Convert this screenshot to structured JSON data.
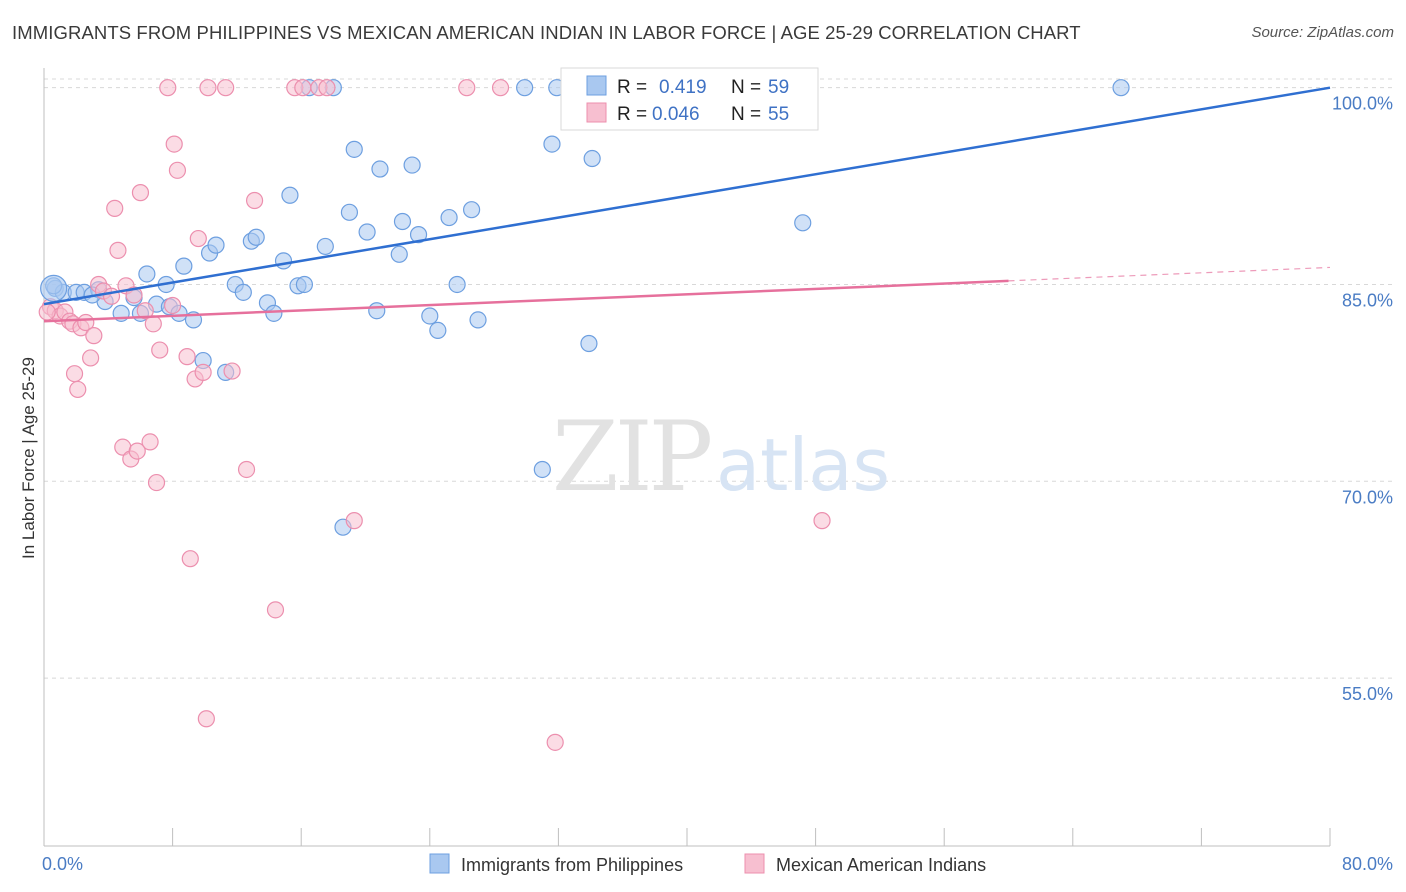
{
  "title": "IMMIGRANTS FROM PHILIPPINES VS MEXICAN AMERICAN INDIAN IN LABOR FORCE | AGE 25-29 CORRELATION CHART",
  "source": "Source: ZipAtlas.com",
  "watermark": {
    "zip": "ZIP",
    "atlas": "atlas"
  },
  "colors": {
    "blue_fill": "#a9c8f0",
    "blue_stroke": "#6d9fe0",
    "blue_line": "#2f6fd1",
    "pink_fill": "#f7bfd0",
    "pink_stroke": "#ec8fae",
    "pink_line": "#e6709c",
    "grid": "#d8d8d8",
    "tick_text": "#4a7cc4"
  },
  "stats_box": {
    "rows": [
      {
        "r_label": "R =",
        "r_value": "0.419",
        "n_label": "N =",
        "n_value": "59",
        "series": "blue"
      },
      {
        "r_label": "R =",
        "r_value": "0.046",
        "n_label": "N =",
        "n_value": "55",
        "series": "pink"
      }
    ]
  },
  "chart_data": {
    "type": "scatter",
    "title": "IMMIGRANTS FROM PHILIPPINES VS MEXICAN AMERICAN INDIAN IN LABOR FORCE | AGE 25-29 CORRELATION CHART",
    "xlabel": "",
    "ylabel": "In Labor Force | Age 25-29",
    "xlim": [
      0,
      80
    ],
    "ylim": [
      42.2,
      101.5
    ],
    "x_tick_labels": [
      {
        "value": 0,
        "label": "0.0%"
      },
      {
        "value": 80,
        "label": "80.0%"
      }
    ],
    "y_ticks": [
      {
        "value": 100,
        "label": "100.0%"
      },
      {
        "value": 85,
        "label": "85.0%"
      },
      {
        "value": 70,
        "label": "70.0%"
      },
      {
        "value": 55,
        "label": "55.0%"
      }
    ],
    "grid": true,
    "legend_position": "bottom",
    "series": [
      {
        "name": "Immigrants from Philippines",
        "color": "blue",
        "r": 0.419,
        "n": 59,
        "trend": {
          "x": [
            0,
            80
          ],
          "y": [
            83.5,
            100.0
          ],
          "dashed_from": null
        },
        "points": [
          [
            0.7,
            84.7
          ],
          [
            1.2,
            84.4
          ],
          [
            2.0,
            84.4
          ],
          [
            2.5,
            84.4
          ],
          [
            3.4,
            84.6
          ],
          [
            3.8,
            83.7
          ],
          [
            4.8,
            82.8
          ],
          [
            5.6,
            84.0
          ],
          [
            6.0,
            82.8
          ],
          [
            6.4,
            85.8
          ],
          [
            7.0,
            83.5
          ],
          [
            7.6,
            85.0
          ],
          [
            7.8,
            83.3
          ],
          [
            8.4,
            82.8
          ],
          [
            8.7,
            86.4
          ],
          [
            9.3,
            82.3
          ],
          [
            9.9,
            79.2
          ],
          [
            10.3,
            87.4
          ],
          [
            10.7,
            88.0
          ],
          [
            11.3,
            78.3
          ],
          [
            11.9,
            85.0
          ],
          [
            12.4,
            84.4
          ],
          [
            12.9,
            88.3
          ],
          [
            13.2,
            88.6
          ],
          [
            13.9,
            83.6
          ],
          [
            14.3,
            82.8
          ],
          [
            14.9,
            86.8
          ],
          [
            15.3,
            91.8
          ],
          [
            15.8,
            84.9
          ],
          [
            16.2,
            85.0
          ],
          [
            17.5,
            87.9
          ],
          [
            18.0,
            100.0
          ],
          [
            18.6,
            66.5
          ],
          [
            19.0,
            90.5
          ],
          [
            19.3,
            95.3
          ],
          [
            20.1,
            89.0
          ],
          [
            20.7,
            83.0
          ],
          [
            20.9,
            93.8
          ],
          [
            22.1,
            87.3
          ],
          [
            22.3,
            89.8
          ],
          [
            22.9,
            94.1
          ],
          [
            23.3,
            88.8
          ],
          [
            24.0,
            82.6
          ],
          [
            24.5,
            81.5
          ],
          [
            25.2,
            90.1
          ],
          [
            25.7,
            85.0
          ],
          [
            26.6,
            90.7
          ],
          [
            27.0,
            82.3
          ],
          [
            29.9,
            100.0
          ],
          [
            31.0,
            70.9
          ],
          [
            31.6,
            95.7
          ],
          [
            31.9,
            100.0
          ],
          [
            33.9,
            80.5
          ],
          [
            34.1,
            94.6
          ],
          [
            47.2,
            89.7
          ],
          [
            67.0,
            100.0
          ],
          [
            0.6,
            84.9
          ],
          [
            3.0,
            84.2
          ],
          [
            16.5,
            100.0
          ]
        ]
      },
      {
        "name": "Mexican American Indians",
        "color": "pink",
        "r": 0.046,
        "n": 55,
        "trend": {
          "x": [
            0,
            80
          ],
          "y": [
            82.2,
            86.3
          ],
          "dashed_from": 60
        },
        "points": [
          [
            0.4,
            83.3
          ],
          [
            0.7,
            83.0
          ],
          [
            1.0,
            82.6
          ],
          [
            1.3,
            82.9
          ],
          [
            1.6,
            82.2
          ],
          [
            1.8,
            82.0
          ],
          [
            1.9,
            78.2
          ],
          [
            2.1,
            77.0
          ],
          [
            2.3,
            81.7
          ],
          [
            2.6,
            82.1
          ],
          [
            2.9,
            79.4
          ],
          [
            3.1,
            81.1
          ],
          [
            3.4,
            85.0
          ],
          [
            3.7,
            84.5
          ],
          [
            4.2,
            84.1
          ],
          [
            4.4,
            90.8
          ],
          [
            4.6,
            87.6
          ],
          [
            4.9,
            72.6
          ],
          [
            5.1,
            84.9
          ],
          [
            5.4,
            71.7
          ],
          [
            5.6,
            84.2
          ],
          [
            5.8,
            72.3
          ],
          [
            6.0,
            92.0
          ],
          [
            6.3,
            83.0
          ],
          [
            6.6,
            73.0
          ],
          [
            6.8,
            82.0
          ],
          [
            7.0,
            69.9
          ],
          [
            7.2,
            80.0
          ],
          [
            7.7,
            100.0
          ],
          [
            8.0,
            83.4
          ],
          [
            8.1,
            95.7
          ],
          [
            8.3,
            93.7
          ],
          [
            8.9,
            79.5
          ],
          [
            9.1,
            64.1
          ],
          [
            9.4,
            77.8
          ],
          [
            9.6,
            88.5
          ],
          [
            9.9,
            78.3
          ],
          [
            10.1,
            51.9
          ],
          [
            10.2,
            100.0
          ],
          [
            11.3,
            100.0
          ],
          [
            11.7,
            78.4
          ],
          [
            12.6,
            70.9
          ],
          [
            13.1,
            91.4
          ],
          [
            14.4,
            60.2
          ],
          [
            15.6,
            100.0
          ],
          [
            16.1,
            100.0
          ],
          [
            17.1,
            100.0
          ],
          [
            17.6,
            100.0
          ],
          [
            19.3,
            67.0
          ],
          [
            26.3,
            100.0
          ],
          [
            28.4,
            100.0
          ],
          [
            31.8,
            50.1
          ],
          [
            44.7,
            100.0
          ],
          [
            48.4,
            67.0
          ],
          [
            0.2,
            82.9
          ]
        ]
      }
    ]
  }
}
